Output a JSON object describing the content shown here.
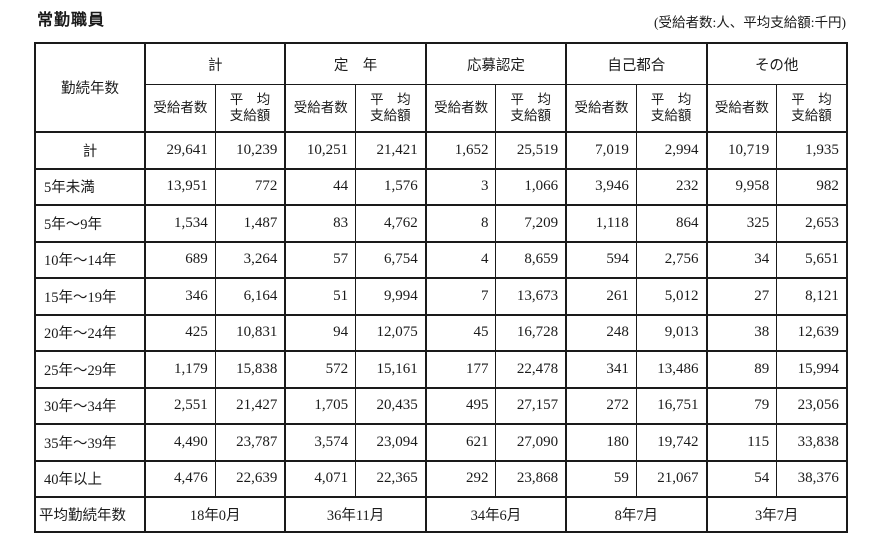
{
  "title": "常勤職員",
  "unit_note": "(受給者数:人、平均支給額:千円)",
  "colors": {
    "background": "#ffffff",
    "border": "#1a1a1a",
    "text": "#1a1a1a"
  },
  "table": {
    "corner_header": "勤続年数",
    "groups": [
      "計",
      "定　年",
      "応募認定",
      "自己都合",
      "その他"
    ],
    "sub_headers": {
      "recipients": "受給者数",
      "average_amount": "平　均\n支給額"
    },
    "rows": [
      {
        "label": "計",
        "values": [
          "29,641",
          "10,239",
          "10,251",
          "21,421",
          "1,652",
          "25,519",
          "7,019",
          "2,994",
          "10,719",
          "1,935"
        ]
      },
      {
        "label": "5年未満",
        "values": [
          "13,951",
          "772",
          "44",
          "1,576",
          "3",
          "1,066",
          "3,946",
          "232",
          "9,958",
          "982"
        ]
      },
      {
        "label": "5年〜9年",
        "values": [
          "1,534",
          "1,487",
          "83",
          "4,762",
          "8",
          "7,209",
          "1,118",
          "864",
          "325",
          "2,653"
        ]
      },
      {
        "label": "10年〜14年",
        "values": [
          "689",
          "3,264",
          "57",
          "6,754",
          "4",
          "8,659",
          "594",
          "2,756",
          "34",
          "5,651"
        ]
      },
      {
        "label": "15年〜19年",
        "values": [
          "346",
          "6,164",
          "51",
          "9,994",
          "7",
          "13,673",
          "261",
          "5,012",
          "27",
          "8,121"
        ]
      },
      {
        "label": "20年〜24年",
        "values": [
          "425",
          "10,831",
          "94",
          "12,075",
          "45",
          "16,728",
          "248",
          "9,013",
          "38",
          "12,639"
        ]
      },
      {
        "label": "25年〜29年",
        "values": [
          "1,179",
          "15,838",
          "572",
          "15,161",
          "177",
          "22,478",
          "341",
          "13,486",
          "89",
          "15,994"
        ]
      },
      {
        "label": "30年〜34年",
        "values": [
          "2,551",
          "21,427",
          "1,705",
          "20,435",
          "495",
          "27,157",
          "272",
          "16,751",
          "79",
          "23,056"
        ]
      },
      {
        "label": "35年〜39年",
        "values": [
          "4,490",
          "23,787",
          "3,574",
          "23,094",
          "621",
          "27,090",
          "180",
          "19,742",
          "115",
          "33,838"
        ]
      },
      {
        "label": "40年以上",
        "values": [
          "4,476",
          "22,639",
          "4,071",
          "22,365",
          "292",
          "23,868",
          "59",
          "21,067",
          "54",
          "38,376"
        ]
      }
    ],
    "footer": {
      "label": "平均勤続年数",
      "values": [
        "18年0月",
        "36年11月",
        "34年6月",
        "8年7月",
        "3年7月"
      ]
    }
  }
}
